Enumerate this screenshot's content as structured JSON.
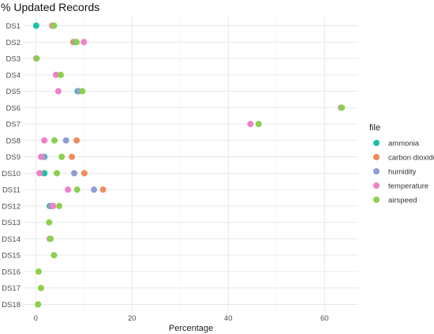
{
  "chart_data": {
    "type": "scatter",
    "title": "% Updated Records",
    "xlabel": "Percentage",
    "ylabel": "",
    "xlim": [
      -2.5,
      67
    ],
    "x_ticks": [
      0,
      20,
      40,
      60
    ],
    "grid": true,
    "legend_placement": "right",
    "legend_title": "file",
    "categories": [
      "DS1",
      "DS2",
      "DS3",
      "DS4",
      "DS5",
      "DS6",
      "DS7",
      "DS8",
      "DS9",
      "DS10",
      "DS11",
      "DS12",
      "DS13",
      "DS14",
      "DS15",
      "DS16",
      "DS17",
      "DS18"
    ],
    "series": [
      {
        "name": "ammonia",
        "color": "#1fbfa8",
        "values": [
          0.1,
          null,
          null,
          null,
          8.7,
          null,
          null,
          null,
          1.8,
          1.8,
          null,
          2.9,
          null,
          null,
          null,
          null,
          null,
          null
        ]
      },
      {
        "name": "carbon dioxide",
        "color": "#f08c5e",
        "values": [
          3.4,
          7.8,
          null,
          null,
          null,
          63.5,
          null,
          8.5,
          7.5,
          10.1,
          14.0,
          3.3,
          null,
          null,
          null,
          null,
          null,
          null
        ]
      },
      {
        "name": "humidity",
        "color": "#8e9ed2",
        "values": [
          3.6,
          8.2,
          null,
          null,
          8.9,
          null,
          null,
          6.3,
          1.6,
          8.0,
          12.1,
          3.1,
          null,
          null,
          null,
          null,
          null,
          null
        ]
      },
      {
        "name": "temperature",
        "color": "#ed82c4",
        "values": [
          3.5,
          10.0,
          0.1,
          4.2,
          4.7,
          63.4,
          44.6,
          1.8,
          1.1,
          0.8,
          6.7,
          3.6,
          null,
          2.9,
          null,
          null,
          null,
          null
        ]
      },
      {
        "name": "airspeed",
        "color": "#8ccf4d",
        "values": [
          3.8,
          8.5,
          0.2,
          5.2,
          9.7,
          63.6,
          46.3,
          3.9,
          5.4,
          4.4,
          8.6,
          4.9,
          2.8,
          3.1,
          3.8,
          0.6,
          1.1,
          0.5
        ]
      }
    ]
  }
}
